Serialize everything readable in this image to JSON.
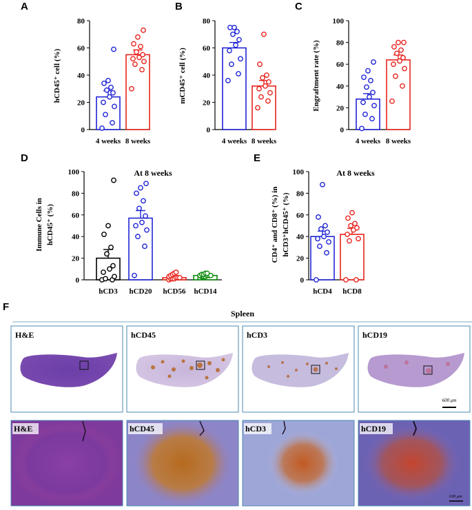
{
  "panels": {
    "A": "A",
    "B": "B",
    "C": "C",
    "D": "D",
    "E": "E",
    "F": "F"
  },
  "colors": {
    "blue": "#1f24d6",
    "red": "#e8231d",
    "black": "#000000",
    "green": "#0a8a0a",
    "frame": "#4a8ab0"
  },
  "chart_data": [
    {
      "id": "A",
      "type": "bar",
      "ylabel": "hCD45⁺ cell (%)",
      "ylim": [
        0,
        80
      ],
      "yticks": [
        0,
        20,
        40,
        60,
        80
      ],
      "categories": [
        "4 weeks",
        "8 weeks"
      ],
      "colors": [
        "blue",
        "red"
      ],
      "values": [
        24,
        55
      ],
      "errors": [
        4.5,
        3.5
      ],
      "points": [
        [
          1,
          5,
          11,
          17,
          20,
          24,
          27,
          29,
          31,
          34,
          36,
          59
        ],
        [
          30,
          44,
          48,
          50,
          52,
          53,
          55,
          57,
          61,
          63,
          68,
          73
        ]
      ]
    },
    {
      "id": "B",
      "type": "bar",
      "ylabel": "mCD45⁺ cell (%)",
      "ylim": [
        0,
        80
      ],
      "yticks": [
        0,
        20,
        40,
        60,
        80
      ],
      "categories": [
        "4 weeks",
        "8 weeks"
      ],
      "colors": [
        "blue",
        "red"
      ],
      "values": [
        60,
        32
      ],
      "errors": [
        4,
        4
      ],
      "points": [
        [
          36,
          41,
          48,
          52,
          58,
          62,
          66,
          70,
          72,
          75,
          75
        ],
        [
          16,
          21,
          24,
          27,
          30,
          32,
          35,
          38,
          40,
          48,
          70
        ]
      ]
    },
    {
      "id": "C",
      "type": "bar",
      "ylabel": "Engraftment rate (%)",
      "ylim": [
        0,
        100
      ],
      "yticks": [
        0,
        20,
        40,
        60,
        80,
        100
      ],
      "categories": [
        "4 weeks",
        "8 weeks"
      ],
      "colors": [
        "blue",
        "red"
      ],
      "values": [
        28,
        64
      ],
      "errors": [
        5,
        4.5
      ],
      "points": [
        [
          1,
          10,
          14,
          22,
          25,
          30,
          34,
          39,
          45,
          48,
          54,
          62
        ],
        [
          26,
          40,
          49,
          56,
          60,
          63,
          66,
          70,
          73,
          76,
          80,
          80
        ]
      ]
    },
    {
      "id": "D",
      "type": "bar",
      "title": "At 8 weeks",
      "ylabel": "Immune Cells in hCD45⁺ (%)",
      "ylim": [
        0,
        100
      ],
      "yticks": [
        0,
        20,
        40,
        60,
        80,
        100
      ],
      "categories": [
        "hCD3",
        "hCD20",
        "hCD56",
        "hCD14"
      ],
      "colors": [
        "black",
        "blue",
        "red",
        "green"
      ],
      "values": [
        20,
        57,
        2,
        4
      ],
      "errors": [
        8,
        7,
        0.6,
        0.6
      ],
      "points": [
        [
          0,
          0,
          1,
          3,
          7,
          10,
          13,
          24,
          30,
          42,
          50,
          92
        ],
        [
          4,
          31,
          40,
          46,
          50,
          53,
          59,
          66,
          73,
          80,
          85,
          89
        ],
        [
          0,
          1,
          1,
          1,
          2,
          2,
          2,
          3,
          4,
          5,
          6,
          7
        ],
        [
          2,
          3,
          3,
          3,
          4,
          4,
          4,
          4,
          5,
          5,
          6,
          6
        ]
      ]
    },
    {
      "id": "E",
      "type": "bar",
      "title": "At 8 weeks",
      "ylabel": "CD4⁺ and CD8⁺ (%) in hCD3⁺hCD45⁺ (%)",
      "ylim": [
        0,
        100
      ],
      "yticks": [
        0,
        20,
        40,
        60,
        80,
        100
      ],
      "categories": [
        "hCD4",
        "hCD8"
      ],
      "colors": [
        "blue",
        "red"
      ],
      "values": [
        40,
        42
      ],
      "errors": [
        5,
        5.5
      ],
      "points": [
        [
          0,
          25,
          31,
          35,
          38,
          40,
          44,
          47,
          50,
          58,
          88
        ],
        [
          0,
          0,
          36,
          38,
          42,
          46,
          48,
          50,
          52,
          57,
          62
        ]
      ]
    }
  ],
  "histology": {
    "title": "Spleen",
    "top_labels": [
      "H&E",
      "hCD45",
      "hCD3",
      "hCD19"
    ],
    "bottom_labels": [
      "H&E",
      "hCD45",
      "hCD3",
      "hCD19"
    ],
    "scale_top": "600 μm",
    "scale_bottom": "100 μm"
  }
}
